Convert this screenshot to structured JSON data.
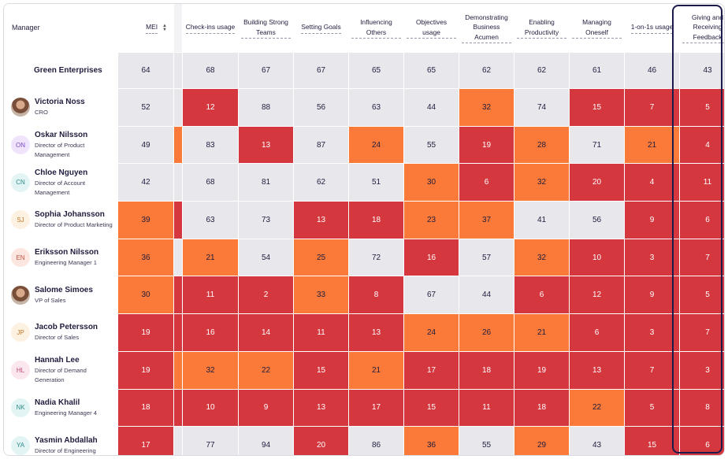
{
  "colors": {
    "red": "#d5373f",
    "orange": "#fb7a3a",
    "neutral": "#e8e8ec",
    "highlight_border": "#1d1a4c"
  },
  "columns": [
    {
      "key": "manager",
      "label": "Manager"
    },
    {
      "key": "mei",
      "label": "MEI",
      "sort_icon": "sort-icon"
    },
    {
      "key": "checkins",
      "label": "Check-ins usage"
    },
    {
      "key": "building",
      "label": "Building Strong Teams"
    },
    {
      "key": "goals",
      "label": "Setting Goals"
    },
    {
      "key": "influencing",
      "label": "Influencing Others"
    },
    {
      "key": "objectives",
      "label": "Objectives usage"
    },
    {
      "key": "business",
      "label": "Demonstrating Business Acumen"
    },
    {
      "key": "productivity",
      "label": "Enabling Productivity"
    },
    {
      "key": "oneself",
      "label": "Managing Oneself"
    },
    {
      "key": "oneonone",
      "label": "1-on-1s usage"
    },
    {
      "key": "feedback",
      "label": "Giving and Receiving Feedback"
    }
  ],
  "rows": [
    {
      "name": "Green Enterprises",
      "role": "",
      "avatar": "",
      "avatar_color": "",
      "avatar_text": "",
      "mei": {
        "v": "64",
        "c": "neutral"
      },
      "mei_edge": "neutral",
      "values": [
        [
          "68",
          "neutral"
        ],
        [
          "67",
          "neutral"
        ],
        [
          "67",
          "neutral"
        ],
        [
          "65",
          "neutral"
        ],
        [
          "65",
          "neutral"
        ],
        [
          "62",
          "neutral"
        ],
        [
          "62",
          "neutral"
        ],
        [
          "61",
          "neutral"
        ],
        [
          "46",
          "neutral"
        ],
        [
          "43",
          "neutral"
        ]
      ]
    },
    {
      "name": "Victoria Noss",
      "role": "CRO",
      "avatar": "photo",
      "avatar_color": "",
      "avatar_text": "",
      "mei": {
        "v": "52",
        "c": "neutral"
      },
      "mei_edge": "neutral",
      "values": [
        [
          "12",
          "red"
        ],
        [
          "88",
          "neutral"
        ],
        [
          "56",
          "neutral"
        ],
        [
          "63",
          "neutral"
        ],
        [
          "44",
          "neutral"
        ],
        [
          "32",
          "orange"
        ],
        [
          "74",
          "neutral"
        ],
        [
          "15",
          "red"
        ],
        [
          "7",
          "red"
        ],
        [
          "5",
          "red"
        ]
      ]
    },
    {
      "name": "Oskar Nilsson",
      "role": "Director of Product Management",
      "avatar": "initials",
      "avatar_color": "#efe4fb",
      "avatar_text": "ON",
      "avatar_text_color": "#7c4bc4",
      "mei": {
        "v": "49",
        "c": "neutral"
      },
      "mei_edge": "orange",
      "values": [
        [
          "83",
          "neutral"
        ],
        [
          "13",
          "red"
        ],
        [
          "87",
          "neutral"
        ],
        [
          "24",
          "orange"
        ],
        [
          "55",
          "neutral"
        ],
        [
          "19",
          "red"
        ],
        [
          "28",
          "orange"
        ],
        [
          "71",
          "neutral"
        ],
        [
          "21",
          "orange"
        ],
        [
          "4",
          "red"
        ]
      ]
    },
    {
      "name": "Chloe Nguyen",
      "role": "Director of Account Management",
      "avatar": "initials",
      "avatar_color": "#e3f4f4",
      "avatar_text": "CN",
      "avatar_text_color": "#2d8c8a",
      "mei": {
        "v": "42",
        "c": "neutral"
      },
      "mei_edge": "neutral",
      "values": [
        [
          "68",
          "neutral"
        ],
        [
          "81",
          "neutral"
        ],
        [
          "62",
          "neutral"
        ],
        [
          "51",
          "neutral"
        ],
        [
          "30",
          "orange"
        ],
        [
          "6",
          "red"
        ],
        [
          "32",
          "orange"
        ],
        [
          "20",
          "red"
        ],
        [
          "4",
          "red"
        ],
        [
          "11",
          "red"
        ]
      ]
    },
    {
      "name": "Sophia Johansson",
      "role": "Director of Product Marketing",
      "avatar": "initials",
      "avatar_color": "#fdf1e2",
      "avatar_text": "SJ",
      "avatar_text_color": "#c07a2a",
      "mei": {
        "v": "39",
        "c": "orange"
      },
      "mei_edge": "red",
      "values": [
        [
          "63",
          "neutral"
        ],
        [
          "73",
          "neutral"
        ],
        [
          "13",
          "red"
        ],
        [
          "18",
          "red"
        ],
        [
          "23",
          "orange"
        ],
        [
          "37",
          "orange"
        ],
        [
          "41",
          "neutral"
        ],
        [
          "56",
          "neutral"
        ],
        [
          "9",
          "red"
        ],
        [
          "6",
          "red"
        ]
      ]
    },
    {
      "name": "Eriksson Nilsson",
      "role": "Engineering Manager 1",
      "avatar": "initials",
      "avatar_color": "#fde6e0",
      "avatar_text": "EN",
      "avatar_text_color": "#c2543e",
      "mei": {
        "v": "36",
        "c": "orange"
      },
      "mei_edge": "neutral",
      "values": [
        [
          "21",
          "orange"
        ],
        [
          "54",
          "neutral"
        ],
        [
          "25",
          "orange"
        ],
        [
          "72",
          "neutral"
        ],
        [
          "16",
          "red"
        ],
        [
          "57",
          "neutral"
        ],
        [
          "32",
          "orange"
        ],
        [
          "10",
          "red"
        ],
        [
          "3",
          "red"
        ],
        [
          "7",
          "red"
        ]
      ]
    },
    {
      "name": "Salome Simoes",
      "role": "VP of Sales",
      "avatar": "photo",
      "avatar_color": "",
      "avatar_text": "",
      "mei": {
        "v": "30",
        "c": "orange"
      },
      "mei_edge": "red",
      "values": [
        [
          "11",
          "red"
        ],
        [
          "2",
          "red"
        ],
        [
          "33",
          "orange"
        ],
        [
          "8",
          "red"
        ],
        [
          "67",
          "neutral"
        ],
        [
          "44",
          "neutral"
        ],
        [
          "6",
          "red"
        ],
        [
          "12",
          "red"
        ],
        [
          "9",
          "red"
        ],
        [
          "5",
          "red"
        ]
      ]
    },
    {
      "name": "Jacob Petersson",
      "role": "Director of Sales",
      "avatar": "initials",
      "avatar_color": "#fdf1e2",
      "avatar_text": "JP",
      "avatar_text_color": "#c07a2a",
      "mei": {
        "v": "19",
        "c": "red"
      },
      "mei_edge": "red",
      "values": [
        [
          "16",
          "red"
        ],
        [
          "14",
          "red"
        ],
        [
          "11",
          "red"
        ],
        [
          "13",
          "red"
        ],
        [
          "24",
          "orange"
        ],
        [
          "26",
          "orange"
        ],
        [
          "21",
          "orange"
        ],
        [
          "6",
          "red"
        ],
        [
          "3",
          "red"
        ],
        [
          "7",
          "red"
        ]
      ]
    },
    {
      "name": "Hannah Lee",
      "role": "Director of Demand Generation",
      "avatar": "initials",
      "avatar_color": "#fbe6ee",
      "avatar_text": "HL",
      "avatar_text_color": "#c04a7a",
      "mei": {
        "v": "19",
        "c": "red"
      },
      "mei_edge": "orange",
      "values": [
        [
          "32",
          "orange"
        ],
        [
          "22",
          "orange"
        ],
        [
          "15",
          "red"
        ],
        [
          "21",
          "orange"
        ],
        [
          "17",
          "red"
        ],
        [
          "18",
          "red"
        ],
        [
          "19",
          "red"
        ],
        [
          "13",
          "red"
        ],
        [
          "7",
          "red"
        ],
        [
          "3",
          "red"
        ]
      ]
    },
    {
      "name": "Nadia Khalil",
      "role": "Engineering Manager 4",
      "avatar": "initials",
      "avatar_color": "#e3f4f4",
      "avatar_text": "NK",
      "avatar_text_color": "#2d8c8a",
      "mei": {
        "v": "18",
        "c": "red"
      },
      "mei_edge": "red",
      "values": [
        [
          "10",
          "red"
        ],
        [
          "9",
          "red"
        ],
        [
          "13",
          "red"
        ],
        [
          "17",
          "red"
        ],
        [
          "15",
          "red"
        ],
        [
          "11",
          "red"
        ],
        [
          "18",
          "red"
        ],
        [
          "22",
          "orange"
        ],
        [
          "5",
          "red"
        ],
        [
          "8",
          "red"
        ]
      ]
    },
    {
      "name": "Yasmin Abdallah",
      "role": "Director of Engineering",
      "avatar": "initials",
      "avatar_color": "#e3f4f4",
      "avatar_text": "YA",
      "avatar_text_color": "#2d8c8a",
      "mei": {
        "v": "17",
        "c": "red"
      },
      "mei_edge": "neutral",
      "values": [
        [
          "77",
          "neutral"
        ],
        [
          "94",
          "neutral"
        ],
        [
          "20",
          "red"
        ],
        [
          "86",
          "neutral"
        ],
        [
          "36",
          "orange"
        ],
        [
          "55",
          "neutral"
        ],
        [
          "29",
          "orange"
        ],
        [
          "43",
          "neutral"
        ],
        [
          "15",
          "red"
        ],
        [
          "6",
          "red"
        ]
      ]
    }
  ]
}
